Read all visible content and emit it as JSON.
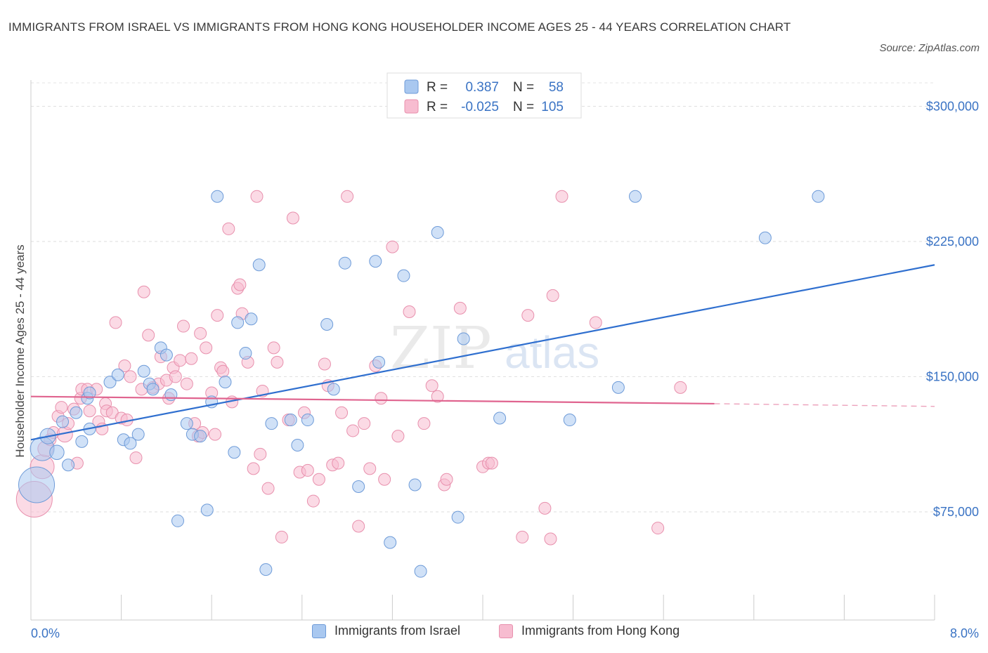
{
  "title": "IMMIGRANTS FROM ISRAEL VS IMMIGRANTS FROM HONG KONG HOUSEHOLDER INCOME AGES 25 - 44 YEARS CORRELATION CHART",
  "source": "Source: ZipAtlas.com",
  "watermark": {
    "zip": "ZIP",
    "atlas": "atlas"
  },
  "legend": {
    "israel": {
      "r_label": "R =",
      "r_value": "0.387",
      "n_label": "N =",
      "n_value": "58"
    },
    "hongkong": {
      "r_label": "R =",
      "r_value": "-0.025",
      "n_label": "N =",
      "n_value": "105"
    }
  },
  "bottom_legend": {
    "israel": "Immigrants from Israel",
    "hongkong": "Immigrants from Hong Kong"
  },
  "colors": {
    "israel_fill": "#a9c8f0",
    "israel_stroke": "#6e9bd8",
    "israel_line": "#2f6fcf",
    "hongkong_fill": "#f7bcd0",
    "hongkong_stroke": "#e890ad",
    "hongkong_line": "#e0648f",
    "tick_color": "#3a73c4"
  },
  "chart_data": {
    "type": "scatter",
    "xlabel": "",
    "ylabel": "Householder Income Ages 25 - 44 years",
    "xlim": [
      0,
      8
    ],
    "ylim": [
      15000,
      320000
    ],
    "x_tick_labels": [
      "0.0%",
      "8.0%"
    ],
    "y_ticks": [
      {
        "value": 75000,
        "label": "$75,000"
      },
      {
        "value": 150000,
        "label": "$150,000"
      },
      {
        "value": 225000,
        "label": "$225,000"
      },
      {
        "value": 300000,
        "label": "$300,000"
      }
    ],
    "grid": true,
    "legend_position": "top-center",
    "series": [
      {
        "name": "Immigrants from Israel",
        "trend": {
          "x": [
            0,
            8
          ],
          "y": [
            115000,
            212000
          ]
        },
        "points": [
          {
            "x": 0.05,
            "y": 90000,
            "s": 3
          },
          {
            "x": 0.1,
            "y": 110000,
            "s": 2
          },
          {
            "x": 0.15,
            "y": 117000,
            "s": 1.3
          },
          {
            "x": 0.23,
            "y": 108000,
            "s": 1.2
          },
          {
            "x": 0.28,
            "y": 125000,
            "s": 1
          },
          {
            "x": 0.33,
            "y": 101000,
            "s": 1
          },
          {
            "x": 0.4,
            "y": 130000,
            "s": 1
          },
          {
            "x": 0.45,
            "y": 114000,
            "s": 1
          },
          {
            "x": 0.5,
            "y": 138000,
            "s": 1
          },
          {
            "x": 0.52,
            "y": 141000,
            "s": 1
          },
          {
            "x": 0.52,
            "y": 121000,
            "s": 1
          },
          {
            "x": 0.7,
            "y": 147000,
            "s": 1
          },
          {
            "x": 0.77,
            "y": 151000,
            "s": 1
          },
          {
            "x": 0.82,
            "y": 115000,
            "s": 1
          },
          {
            "x": 0.88,
            "y": 113000,
            "s": 1
          },
          {
            "x": 0.95,
            "y": 118000,
            "s": 1
          },
          {
            "x": 1.0,
            "y": 153000,
            "s": 1
          },
          {
            "x": 1.05,
            "y": 146000,
            "s": 1
          },
          {
            "x": 1.08,
            "y": 143000,
            "s": 1
          },
          {
            "x": 1.15,
            "y": 166000,
            "s": 1
          },
          {
            "x": 1.2,
            "y": 162000,
            "s": 1
          },
          {
            "x": 1.24,
            "y": 140000,
            "s": 1
          },
          {
            "x": 1.3,
            "y": 70000,
            "s": 1
          },
          {
            "x": 1.38,
            "y": 124000,
            "s": 1
          },
          {
            "x": 1.43,
            "y": 118000,
            "s": 1
          },
          {
            "x": 1.5,
            "y": 117000,
            "s": 1
          },
          {
            "x": 1.56,
            "y": 76000,
            "s": 1
          },
          {
            "x": 1.6,
            "y": 136000,
            "s": 1
          },
          {
            "x": 1.65,
            "y": 250000,
            "s": 1
          },
          {
            "x": 1.72,
            "y": 147000,
            "s": 1
          },
          {
            "x": 1.8,
            "y": 108000,
            "s": 1
          },
          {
            "x": 1.83,
            "y": 180000,
            "s": 1
          },
          {
            "x": 1.9,
            "y": 163000,
            "s": 1
          },
          {
            "x": 1.95,
            "y": 182000,
            "s": 1
          },
          {
            "x": 2.02,
            "y": 212000,
            "s": 1
          },
          {
            "x": 2.08,
            "y": 43000,
            "s": 1
          },
          {
            "x": 2.13,
            "y": 124000,
            "s": 1
          },
          {
            "x": 2.3,
            "y": 126000,
            "s": 1
          },
          {
            "x": 2.36,
            "y": 112000,
            "s": 1
          },
          {
            "x": 2.45,
            "y": 126000,
            "s": 1
          },
          {
            "x": 2.62,
            "y": 179000,
            "s": 1
          },
          {
            "x": 2.68,
            "y": 143000,
            "s": 1
          },
          {
            "x": 2.78,
            "y": 213000,
            "s": 1
          },
          {
            "x": 2.9,
            "y": 89000,
            "s": 1
          },
          {
            "x": 3.05,
            "y": 214000,
            "s": 1
          },
          {
            "x": 3.08,
            "y": 158000,
            "s": 1
          },
          {
            "x": 3.18,
            "y": 58000,
            "s": 1
          },
          {
            "x": 3.3,
            "y": 206000,
            "s": 1
          },
          {
            "x": 3.4,
            "y": 90000,
            "s": 1
          },
          {
            "x": 3.45,
            "y": 42000,
            "s": 1
          },
          {
            "x": 3.6,
            "y": 230000,
            "s": 1
          },
          {
            "x": 3.78,
            "y": 72000,
            "s": 1
          },
          {
            "x": 3.83,
            "y": 171000,
            "s": 1
          },
          {
            "x": 4.15,
            "y": 127000,
            "s": 1
          },
          {
            "x": 4.77,
            "y": 126000,
            "s": 1
          },
          {
            "x": 5.2,
            "y": 144000,
            "s": 1
          },
          {
            "x": 5.35,
            "y": 250000,
            "s": 1
          },
          {
            "x": 6.5,
            "y": 227000,
            "s": 1
          },
          {
            "x": 6.97,
            "y": 250000,
            "s": 1
          }
        ]
      },
      {
        "name": "Immigrants from Hong Kong",
        "trend": {
          "x": [
            0,
            6.05
          ],
          "y": [
            139000,
            135000
          ]
        },
        "trend_dashed": {
          "x": [
            6.05,
            8
          ],
          "y": [
            135000,
            133500
          ]
        },
        "points": [
          {
            "x": 0.03,
            "y": 82000,
            "s": 3
          },
          {
            "x": 0.1,
            "y": 100000,
            "s": 2
          },
          {
            "x": 0.13,
            "y": 110000,
            "s": 1.3
          },
          {
            "x": 0.17,
            "y": 115000,
            "s": 1
          },
          {
            "x": 0.2,
            "y": 119000,
            "s": 1
          },
          {
            "x": 0.24,
            "y": 128000,
            "s": 1
          },
          {
            "x": 0.27,
            "y": 133000,
            "s": 1
          },
          {
            "x": 0.3,
            "y": 118000,
            "s": 1.3
          },
          {
            "x": 0.33,
            "y": 124000,
            "s": 1
          },
          {
            "x": 0.38,
            "y": 132000,
            "s": 1
          },
          {
            "x": 0.41,
            "y": 102000,
            "s": 1
          },
          {
            "x": 0.44,
            "y": 138000,
            "s": 1
          },
          {
            "x": 0.45,
            "y": 143000,
            "s": 1
          },
          {
            "x": 0.5,
            "y": 143000,
            "s": 1
          },
          {
            "x": 0.52,
            "y": 131000,
            "s": 1
          },
          {
            "x": 0.58,
            "y": 143000,
            "s": 1
          },
          {
            "x": 0.6,
            "y": 125000,
            "s": 1
          },
          {
            "x": 0.63,
            "y": 121000,
            "s": 1
          },
          {
            "x": 0.66,
            "y": 135000,
            "s": 1
          },
          {
            "x": 0.67,
            "y": 131000,
            "s": 1
          },
          {
            "x": 0.72,
            "y": 130000,
            "s": 1
          },
          {
            "x": 0.75,
            "y": 180000,
            "s": 1
          },
          {
            "x": 0.8,
            "y": 127000,
            "s": 1
          },
          {
            "x": 0.83,
            "y": 156000,
            "s": 1
          },
          {
            "x": 0.85,
            "y": 126000,
            "s": 1
          },
          {
            "x": 0.88,
            "y": 150000,
            "s": 1
          },
          {
            "x": 0.93,
            "y": 105000,
            "s": 1
          },
          {
            "x": 0.98,
            "y": 143000,
            "s": 1
          },
          {
            "x": 1.0,
            "y": 197000,
            "s": 1
          },
          {
            "x": 1.04,
            "y": 173000,
            "s": 1
          },
          {
            "x": 1.08,
            "y": 144000,
            "s": 1
          },
          {
            "x": 1.13,
            "y": 146000,
            "s": 1
          },
          {
            "x": 1.15,
            "y": 161000,
            "s": 1
          },
          {
            "x": 1.2,
            "y": 148000,
            "s": 1
          },
          {
            "x": 1.22,
            "y": 138000,
            "s": 1
          },
          {
            "x": 1.26,
            "y": 155000,
            "s": 1
          },
          {
            "x": 1.28,
            "y": 150000,
            "s": 1
          },
          {
            "x": 1.32,
            "y": 159000,
            "s": 1
          },
          {
            "x": 1.35,
            "y": 178000,
            "s": 1
          },
          {
            "x": 1.38,
            "y": 146000,
            "s": 1
          },
          {
            "x": 1.42,
            "y": 160000,
            "s": 1
          },
          {
            "x": 1.45,
            "y": 124000,
            "s": 1
          },
          {
            "x": 1.48,
            "y": 117000,
            "s": 1
          },
          {
            "x": 1.5,
            "y": 174000,
            "s": 1
          },
          {
            "x": 1.52,
            "y": 119000,
            "s": 1
          },
          {
            "x": 1.55,
            "y": 166000,
            "s": 1
          },
          {
            "x": 1.6,
            "y": 141000,
            "s": 1
          },
          {
            "x": 1.63,
            "y": 118000,
            "s": 1
          },
          {
            "x": 1.65,
            "y": 184000,
            "s": 1
          },
          {
            "x": 1.68,
            "y": 155000,
            "s": 1
          },
          {
            "x": 1.7,
            "y": 153000,
            "s": 1
          },
          {
            "x": 1.75,
            "y": 232000,
            "s": 1
          },
          {
            "x": 1.78,
            "y": 136000,
            "s": 1
          },
          {
            "x": 1.83,
            "y": 199000,
            "s": 1
          },
          {
            "x": 1.85,
            "y": 201000,
            "s": 1
          },
          {
            "x": 1.87,
            "y": 185000,
            "s": 1
          },
          {
            "x": 1.92,
            "y": 158000,
            "s": 1
          },
          {
            "x": 1.97,
            "y": 99000,
            "s": 1
          },
          {
            "x": 2.0,
            "y": 250000,
            "s": 1
          },
          {
            "x": 2.03,
            "y": 107000,
            "s": 1
          },
          {
            "x": 2.05,
            "y": 142000,
            "s": 1
          },
          {
            "x": 2.1,
            "y": 88000,
            "s": 1
          },
          {
            "x": 2.15,
            "y": 166000,
            "s": 1
          },
          {
            "x": 2.18,
            "y": 158000,
            "s": 1
          },
          {
            "x": 2.22,
            "y": 61000,
            "s": 1
          },
          {
            "x": 2.28,
            "y": 126000,
            "s": 1
          },
          {
            "x": 2.32,
            "y": 238000,
            "s": 1
          },
          {
            "x": 2.38,
            "y": 97000,
            "s": 1
          },
          {
            "x": 2.42,
            "y": 130000,
            "s": 1
          },
          {
            "x": 2.45,
            "y": 98000,
            "s": 1
          },
          {
            "x": 2.5,
            "y": 81000,
            "s": 1
          },
          {
            "x": 2.55,
            "y": 93000,
            "s": 1
          },
          {
            "x": 2.6,
            "y": 157000,
            "s": 1
          },
          {
            "x": 2.63,
            "y": 145000,
            "s": 1
          },
          {
            "x": 2.67,
            "y": 101000,
            "s": 1
          },
          {
            "x": 2.72,
            "y": 102000,
            "s": 1
          },
          {
            "x": 2.75,
            "y": 130000,
            "s": 1
          },
          {
            "x": 2.8,
            "y": 250000,
            "s": 1
          },
          {
            "x": 2.85,
            "y": 120000,
            "s": 1
          },
          {
            "x": 2.9,
            "y": 67000,
            "s": 1
          },
          {
            "x": 2.95,
            "y": 124000,
            "s": 1
          },
          {
            "x": 3.0,
            "y": 99000,
            "s": 1
          },
          {
            "x": 3.05,
            "y": 156000,
            "s": 1
          },
          {
            "x": 3.1,
            "y": 138000,
            "s": 1
          },
          {
            "x": 3.13,
            "y": 93000,
            "s": 1
          },
          {
            "x": 3.2,
            "y": 222000,
            "s": 1
          },
          {
            "x": 3.25,
            "y": 117000,
            "s": 1
          },
          {
            "x": 3.35,
            "y": 186000,
            "s": 1
          },
          {
            "x": 3.48,
            "y": 124000,
            "s": 1
          },
          {
            "x": 3.55,
            "y": 145000,
            "s": 1
          },
          {
            "x": 3.6,
            "y": 139000,
            "s": 1
          },
          {
            "x": 3.66,
            "y": 90000,
            "s": 1
          },
          {
            "x": 3.68,
            "y": 93000,
            "s": 1
          },
          {
            "x": 3.8,
            "y": 188000,
            "s": 1
          },
          {
            "x": 4.0,
            "y": 100000,
            "s": 1
          },
          {
            "x": 4.05,
            "y": 102000,
            "s": 1
          },
          {
            "x": 4.08,
            "y": 102000,
            "s": 1
          },
          {
            "x": 4.35,
            "y": 61000,
            "s": 1
          },
          {
            "x": 4.4,
            "y": 184000,
            "s": 1
          },
          {
            "x": 4.55,
            "y": 77000,
            "s": 1
          },
          {
            "x": 4.6,
            "y": 60000,
            "s": 1
          },
          {
            "x": 4.62,
            "y": 195000,
            "s": 1
          },
          {
            "x": 4.7,
            "y": 250000,
            "s": 1
          },
          {
            "x": 5.0,
            "y": 180000,
            "s": 1
          },
          {
            "x": 5.55,
            "y": 66000,
            "s": 1
          },
          {
            "x": 5.75,
            "y": 144000,
            "s": 1
          }
        ]
      }
    ]
  }
}
